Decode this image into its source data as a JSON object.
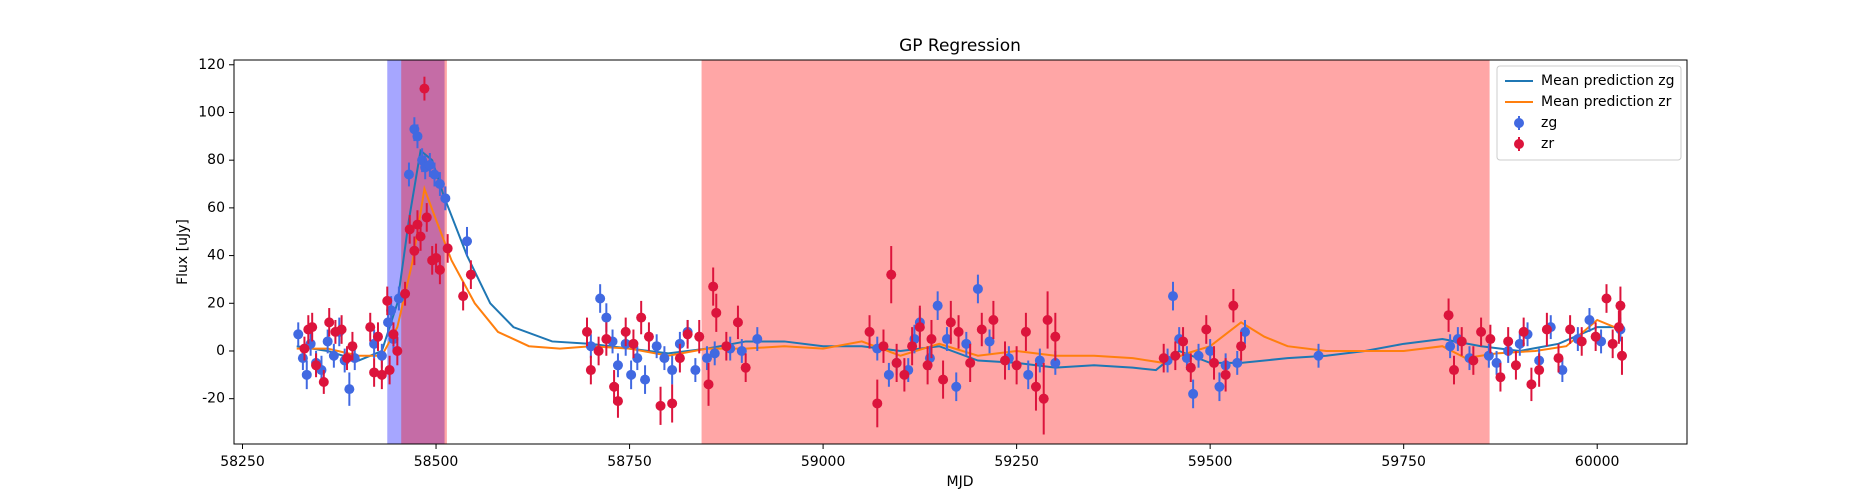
{
  "chart_data": {
    "type": "errorbar",
    "title": "GP Regression",
    "x_label": "MJD",
    "y_label": "Flux [uJy]",
    "xlim": [
      58239,
      60116
    ],
    "ylim": [
      -39,
      122
    ],
    "xticks": [
      58250,
      58500,
      58750,
      59000,
      59250,
      59500,
      59750,
      60000
    ],
    "yticks": [
      -20,
      0,
      20,
      40,
      60,
      80,
      100,
      120
    ],
    "legend": "upper right",
    "spans": [
      {
        "start": 58437,
        "end": 58511,
        "color": "#0000ff",
        "opacity": 0.35
      },
      {
        "start": 58455,
        "end": 58514,
        "color": "#ff0000",
        "opacity": 0.35
      },
      {
        "start": 58843,
        "end": 59861,
        "color": "#ff0000",
        "opacity": 0.35
      }
    ],
    "lines": [
      {
        "name": "Mean prediction zg",
        "color": "#1f77b4",
        "x": [
          58320,
          58360,
          58400,
          58430,
          58450,
          58465,
          58480,
          58495,
          58510,
          58540,
          58570,
          58600,
          58650,
          58700,
          58750,
          58800,
          58850,
          58900,
          58950,
          59000,
          59050,
          59100,
          59150,
          59200,
          59250,
          59300,
          59350,
          59400,
          59430,
          59460,
          59500,
          59540,
          59600,
          59650,
          59700,
          59750,
          59800,
          59850,
          59900,
          59950,
          60000,
          60030
        ],
        "values": [
          2,
          0,
          -4,
          0,
          20,
          55,
          84,
          80,
          65,
          40,
          20,
          10,
          4,
          3,
          1,
          -1,
          1,
          4,
          4,
          2,
          2,
          0,
          2,
          -4,
          -5,
          -7,
          -6,
          -7,
          -8,
          0,
          -5,
          -5,
          -3,
          -2,
          0,
          3,
          5,
          2,
          0,
          3,
          10,
          10
        ]
      },
      {
        "name": "Mean prediction zr",
        "color": "#ff7f0e",
        "x": [
          58320,
          58360,
          58400,
          58430,
          58450,
          58470,
          58485,
          58500,
          58520,
          58550,
          58580,
          58620,
          58660,
          58700,
          58750,
          58800,
          58850,
          58900,
          58950,
          59000,
          59050,
          59100,
          59150,
          59200,
          59250,
          59300,
          59350,
          59400,
          59440,
          59470,
          59500,
          59540,
          59570,
          59600,
          59650,
          59700,
          59750,
          59800,
          59830,
          59870,
          59920,
          59960,
          60000,
          60030
        ],
        "values": [
          1,
          1,
          -2,
          -2,
          10,
          38,
          68,
          55,
          38,
          20,
          8,
          2,
          1,
          2,
          1,
          -2,
          1,
          1,
          2,
          1,
          4,
          -2,
          3,
          -2,
          0,
          -2,
          -2,
          -3,
          -5,
          -1,
          2,
          12,
          6,
          2,
          0,
          0,
          0,
          2,
          -3,
          -1,
          0,
          2,
          13,
          9
        ]
      }
    ],
    "series": [
      {
        "name": "zg",
        "color": "#4169e1",
        "x": [
          58322,
          58328,
          58333,
          58338,
          58345,
          58352,
          58360,
          58368,
          58375,
          58382,
          58388,
          58395,
          58420,
          58430,
          58438,
          58442,
          58445,
          58452,
          58465,
          58472,
          58476,
          58482,
          58486,
          58492,
          58498,
          58505,
          58512,
          58540,
          58700,
          58712,
          58720,
          58728,
          58735,
          58745,
          58752,
          58760,
          58770,
          58785,
          58795,
          58805,
          58815,
          58825,
          58835,
          58850,
          58860,
          58880,
          58895,
          58915,
          59070,
          59085,
          59095,
          59110,
          59118,
          59125,
          59138,
          59148,
          59160,
          59172,
          59185,
          59200,
          59215,
          59240,
          59265,
          59280,
          59300,
          59445,
          59452,
          59460,
          59470,
          59478,
          59485,
          59500,
          59512,
          59520,
          59535,
          59545,
          59640,
          59810,
          59820,
          59835,
          59860,
          59870,
          59885,
          59900,
          59910,
          59925,
          59940,
          59955,
          59975,
          59990,
          60005,
          60030
        ],
        "values": [
          7,
          -3,
          -10,
          3,
          -5,
          -8,
          4,
          -2,
          8,
          -4,
          -16,
          -3,
          3,
          -2,
          12,
          17,
          5,
          22,
          74,
          93,
          90,
          80,
          77,
          78,
          74,
          70,
          64,
          46,
          2,
          22,
          14,
          4,
          -6,
          3,
          -10,
          -3,
          -12,
          2,
          -3,
          -8,
          3,
          8,
          -8,
          -3,
          -1,
          1,
          0,
          5,
          1,
          -10,
          -5,
          -8,
          5,
          12,
          -3,
          19,
          5,
          -15,
          3,
          26,
          4,
          -3,
          -10,
          -4,
          -5,
          -4,
          23,
          5,
          -3,
          -18,
          -2,
          0,
          -15,
          -6,
          -5,
          8,
          -2,
          2,
          5,
          -3,
          -2,
          -5,
          0,
          3,
          7,
          -4,
          10,
          -8,
          5,
          13,
          4,
          9
        ],
        "errors": [
          5,
          5,
          6,
          5,
          5,
          6,
          5,
          5,
          6,
          5,
          7,
          5,
          6,
          5,
          6,
          6,
          5,
          5,
          5,
          5,
          5,
          5,
          5,
          5,
          5,
          5,
          5,
          6,
          5,
          6,
          6,
          5,
          5,
          5,
          6,
          5,
          6,
          5,
          5,
          6,
          5,
          5,
          5,
          5,
          5,
          5,
          5,
          5,
          5,
          5,
          5,
          5,
          6,
          6,
          5,
          6,
          5,
          6,
          5,
          6,
          5,
          5,
          6,
          5,
          5,
          5,
          6,
          5,
          5,
          6,
          5,
          5,
          6,
          5,
          5,
          5,
          5,
          5,
          5,
          5,
          5,
          5,
          5,
          5,
          5,
          5,
          5,
          5,
          5,
          5,
          5,
          5
        ]
      },
      {
        "name": "zr",
        "color": "#dc143c",
        "x": [
          58330,
          58335,
          58340,
          58345,
          58355,
          58362,
          58370,
          58378,
          58385,
          58392,
          58415,
          58420,
          58425,
          58430,
          58437,
          58440,
          58445,
          58450,
          58460,
          58466,
          58472,
          58476,
          58480,
          58485,
          58488,
          58495,
          58500,
          58505,
          58515,
          58535,
          58545,
          58695,
          58700,
          58710,
          58720,
          58730,
          58735,
          58745,
          58755,
          58765,
          58775,
          58790,
          58805,
          58815,
          58825,
          58840,
          58852,
          58858,
          58862,
          58875,
          58890,
          58900,
          59060,
          59070,
          59078,
          59088,
          59095,
          59105,
          59115,
          59125,
          59135,
          59140,
          59155,
          59165,
          59175,
          59190,
          59205,
          59220,
          59235,
          59250,
          59262,
          59275,
          59285,
          59290,
          59300,
          59440,
          59455,
          59465,
          59475,
          59495,
          59505,
          59520,
          59530,
          59540,
          59808,
          59815,
          59825,
          59840,
          59850,
          59862,
          59875,
          59885,
          59895,
          59905,
          59915,
          59925,
          59935,
          59950,
          59965,
          59980,
          59998,
          60012,
          60020,
          60028,
          60030,
          60032
        ],
        "values": [
          1,
          9,
          10,
          -6,
          -13,
          12,
          8,
          9,
          -3,
          2,
          10,
          -9,
          6,
          -10,
          21,
          -8,
          7,
          0,
          24,
          51,
          42,
          53,
          48,
          110,
          56,
          38,
          39,
          34,
          43,
          23,
          32,
          8,
          -8,
          0,
          5,
          -15,
          -21,
          8,
          3,
          14,
          6,
          -23,
          -22,
          -3,
          7,
          6,
          -14,
          27,
          16,
          2,
          12,
          -7,
          8,
          -22,
          2,
          32,
          -5,
          -10,
          2,
          10,
          -6,
          5,
          -12,
          12,
          8,
          -5,
          9,
          13,
          -4,
          -6,
          8,
          -15,
          -20,
          13,
          6,
          -3,
          -2,
          4,
          -7,
          9,
          -5,
          -10,
          19,
          2,
          15,
          -8,
          4,
          -4,
          8,
          5,
          -11,
          4,
          -6,
          8,
          -14,
          -8,
          9,
          -3,
          9,
          4,
          6,
          22,
          3,
          10,
          19,
          -2
        ],
        "errors": [
          5,
          6,
          6,
          5,
          5,
          6,
          5,
          6,
          5,
          6,
          6,
          6,
          6,
          6,
          6,
          6,
          5,
          6,
          5,
          6,
          6,
          6,
          6,
          5,
          6,
          6,
          6,
          6,
          6,
          6,
          6,
          6,
          6,
          6,
          7,
          7,
          7,
          6,
          6,
          7,
          6,
          8,
          8,
          6,
          6,
          7,
          9,
          8,
          8,
          6,
          7,
          6,
          7,
          10,
          7,
          12,
          8,
          7,
          8,
          9,
          8,
          8,
          8,
          9,
          7,
          8,
          7,
          8,
          8,
          8,
          8,
          10,
          15,
          12,
          10,
          6,
          6,
          6,
          6,
          6,
          7,
          7,
          7,
          6,
          7,
          6,
          6,
          6,
          6,
          6,
          6,
          6,
          6,
          6,
          7,
          7,
          7,
          6,
          6,
          6,
          6,
          6,
          6,
          7,
          8,
          8
        ]
      }
    ]
  }
}
